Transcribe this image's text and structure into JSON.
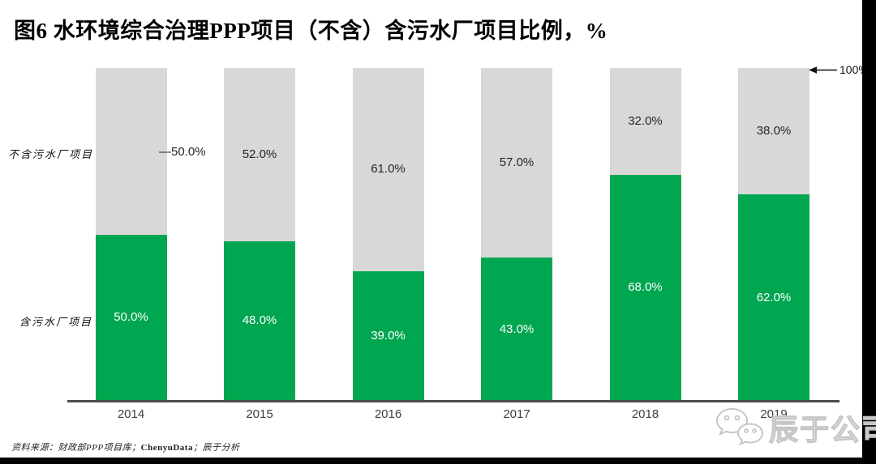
{
  "title": "图6 水环境综合治理PPP项目（不含）含污水厂项目比例，%",
  "category_labels": {
    "top": "不含污水厂项目",
    "bottom": "含污水厂项目"
  },
  "annotations": {
    "axis_max_label": "100%",
    "callout_2014": "—50.0%"
  },
  "source": {
    "prefix": "资料来源：财政部PPP项目库；",
    "brand": "ChenyuData",
    "suffix": "；辰于分析"
  },
  "watermark": {
    "company": "辰于公司",
    "icon": "wechat-icon"
  },
  "colors": {
    "green": "#00a650",
    "gray": "#d8d8d8",
    "axis": "#4d4d4d",
    "label_on_gray": "#262626",
    "label_on_green": "#ffffff"
  },
  "chart_data": {
    "type": "bar",
    "stacked": true,
    "unit": "%",
    "ylim": [
      0,
      100
    ],
    "grid": false,
    "categories": [
      "2014",
      "2015",
      "2016",
      "2017",
      "2018",
      "2019"
    ],
    "series": [
      {
        "name": "含污水厂项目",
        "color_key": "green",
        "position": "bottom",
        "values": [
          50.0,
          48.0,
          39.0,
          43.0,
          68.0,
          62.0
        ],
        "labels": [
          "50.0%",
          "48.0%",
          "39.0%",
          "43.0%",
          "68.0%",
          "62.0%"
        ]
      },
      {
        "name": "不含污水厂项目",
        "color_key": "gray",
        "position": "top",
        "values": [
          50.0,
          52.0,
          61.0,
          57.0,
          32.0,
          38.0
        ],
        "labels": [
          "50.0%",
          "52.0%",
          "61.0%",
          "57.0%",
          "32.0%",
          "38.0%"
        ]
      }
    ],
    "notes": "2014 gray-segment label is drawn outside the bar with a dash leader; arrow at top right marks 100% total bar height"
  }
}
